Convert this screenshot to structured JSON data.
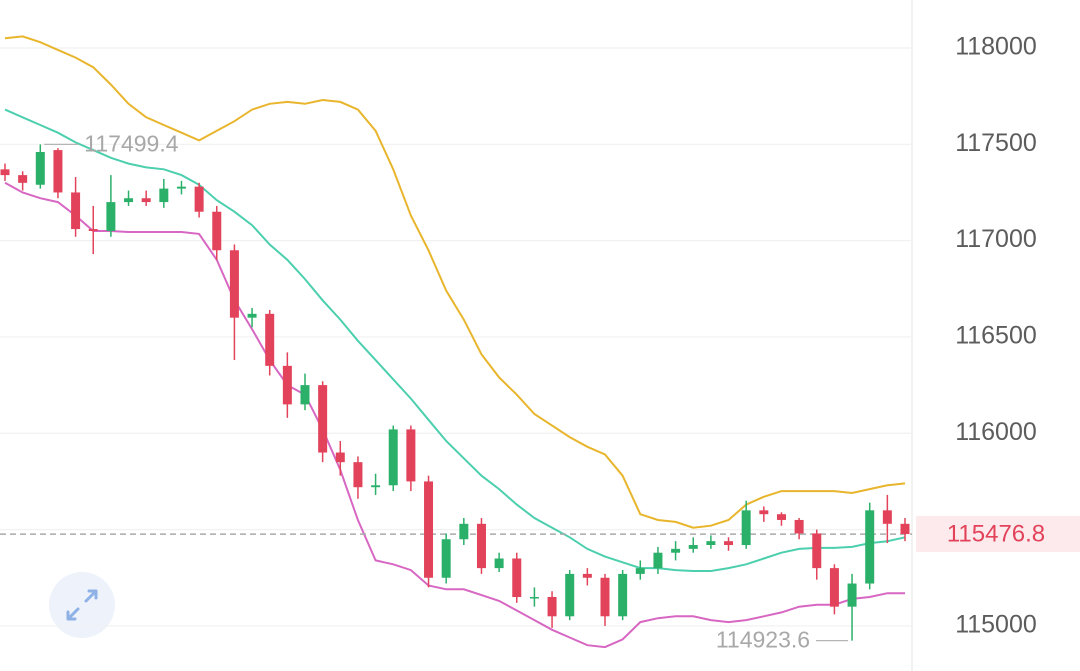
{
  "chart_data": {
    "type": "candlestick",
    "ylim": [
      114766,
      118249
    ],
    "yticks": [
      115000,
      115500,
      116000,
      116500,
      117000,
      117500,
      118000
    ],
    "yticks_shown": [
      115000,
      116000,
      116500,
      117000,
      117500,
      118000
    ],
    "grid": true,
    "up_color": "#2bb06a",
    "down_color": "#e2435a",
    "open": [
      117370,
      117340,
      117290,
      117470,
      117250,
      117060,
      117050,
      117200,
      117220,
      117200,
      117270,
      117280,
      117150,
      116950,
      116600,
      116620,
      116350,
      116150,
      116250,
      115900,
      115850,
      115720,
      115730,
      116020,
      115750,
      115250,
      115450,
      115530,
      115300,
      115350,
      115150,
      115150,
      115050,
      115270,
      115250,
      115050,
      115270,
      115300,
      115380,
      115400,
      115420,
      115440,
      115420,
      115600,
      115580,
      115550,
      115480,
      115300,
      115100,
      115220,
      115600,
      115530
    ],
    "high": [
      117400,
      117360,
      117499.4,
      117480,
      117330,
      117180,
      117340,
      117260,
      117260,
      117320,
      117310,
      117300,
      117180,
      116980,
      116650,
      116640,
      116420,
      116310,
      116270,
      115960,
      115880,
      115790,
      116040,
      116040,
      115780,
      115480,
      115560,
      115560,
      115380,
      115380,
      115200,
      115180,
      115290,
      115300,
      115270,
      115290,
      115340,
      115410,
      115440,
      115460,
      115470,
      115460,
      115650,
      115620,
      115590,
      115560,
      115500,
      115320,
      115270,
      115640,
      115680,
      115560
    ],
    "low": [
      117310,
      117260,
      117270,
      117220,
      117020,
      116930,
      117020,
      117180,
      117180,
      117170,
      117240,
      117120,
      116900,
      116380,
      116550,
      116300,
      116080,
      116120,
      115850,
      115780,
      115660,
      115680,
      115700,
      115700,
      115200,
      115220,
      115420,
      115270,
      115280,
      115120,
      115100,
      114990,
      115030,
      115210,
      115000,
      115030,
      115240,
      115270,
      115340,
      115380,
      115400,
      115390,
      115400,
      115540,
      115520,
      115450,
      115240,
      115060,
      114923.6,
      115190,
      115430,
      115440
    ],
    "close": [
      117340,
      117300,
      117460,
      117250,
      117060,
      117050,
      117200,
      117220,
      117200,
      117270,
      117280,
      117150,
      116950,
      116600,
      116620,
      116350,
      116150,
      116250,
      115900,
      115850,
      115720,
      115730,
      116020,
      115750,
      115250,
      115450,
      115530,
      115300,
      115350,
      115150,
      115150,
      115050,
      115270,
      115250,
      115050,
      115270,
      115300,
      115380,
      115400,
      115420,
      115440,
      115420,
      115600,
      115580,
      115550,
      115480,
      115300,
      115100,
      115220,
      115600,
      115530,
      115476.8
    ],
    "series": [
      {
        "color": "#e8b52c",
        "values": [
          118050,
          118060,
          118030,
          117990,
          117950,
          117900,
          117810,
          117710,
          117640,
          117600,
          117560,
          117520,
          117570,
          117620,
          117680,
          117710,
          117720,
          117710,
          117730,
          117720,
          117680,
          117570,
          117370,
          117130,
          116950,
          116740,
          116590,
          116410,
          116290,
          116200,
          116100,
          116040,
          115980,
          115930,
          115890,
          115780,
          115580,
          115550,
          115540,
          115510,
          115520,
          115550,
          115630,
          115670,
          115700,
          115700,
          115700,
          115700,
          115690,
          115710,
          115730,
          115740
        ]
      },
      {
        "color": "#4ccfae",
        "values": [
          117680,
          117640,
          117600,
          117560,
          117510,
          117470,
          117430,
          117400,
          117380,
          117370,
          117340,
          117290,
          117210,
          117150,
          117080,
          116980,
          116900,
          116800,
          116690,
          116590,
          116480,
          116380,
          116280,
          116180,
          116070,
          115960,
          115870,
          115780,
          115710,
          115630,
          115560,
          115510,
          115460,
          115400,
          115360,
          115330,
          115300,
          115300,
          115290,
          115285,
          115285,
          115300,
          115320,
          115350,
          115380,
          115400,
          115405,
          115405,
          115410,
          115430,
          115440,
          115460
        ]
      },
      {
        "color": "#d767c2",
        "values": [
          117300,
          117250,
          117220,
          117200,
          117130,
          117050,
          117050,
          117045,
          117045,
          117045,
          117045,
          117035,
          116900,
          116692,
          116540,
          116380,
          116250,
          116200,
          116020,
          115810,
          115550,
          115340,
          115320,
          115290,
          115210,
          115190,
          115190,
          115160,
          115130,
          115080,
          115030,
          114980,
          114940,
          114900,
          114890,
          114930,
          115020,
          115040,
          115050,
          115050,
          115030,
          115020,
          115030,
          115050,
          115070,
          115100,
          115110,
          115110,
          115140,
          115150,
          115170,
          115170
        ]
      }
    ],
    "current_price": 115476.8,
    "max_label": 117499.4,
    "min_label": 114923.6
  }
}
